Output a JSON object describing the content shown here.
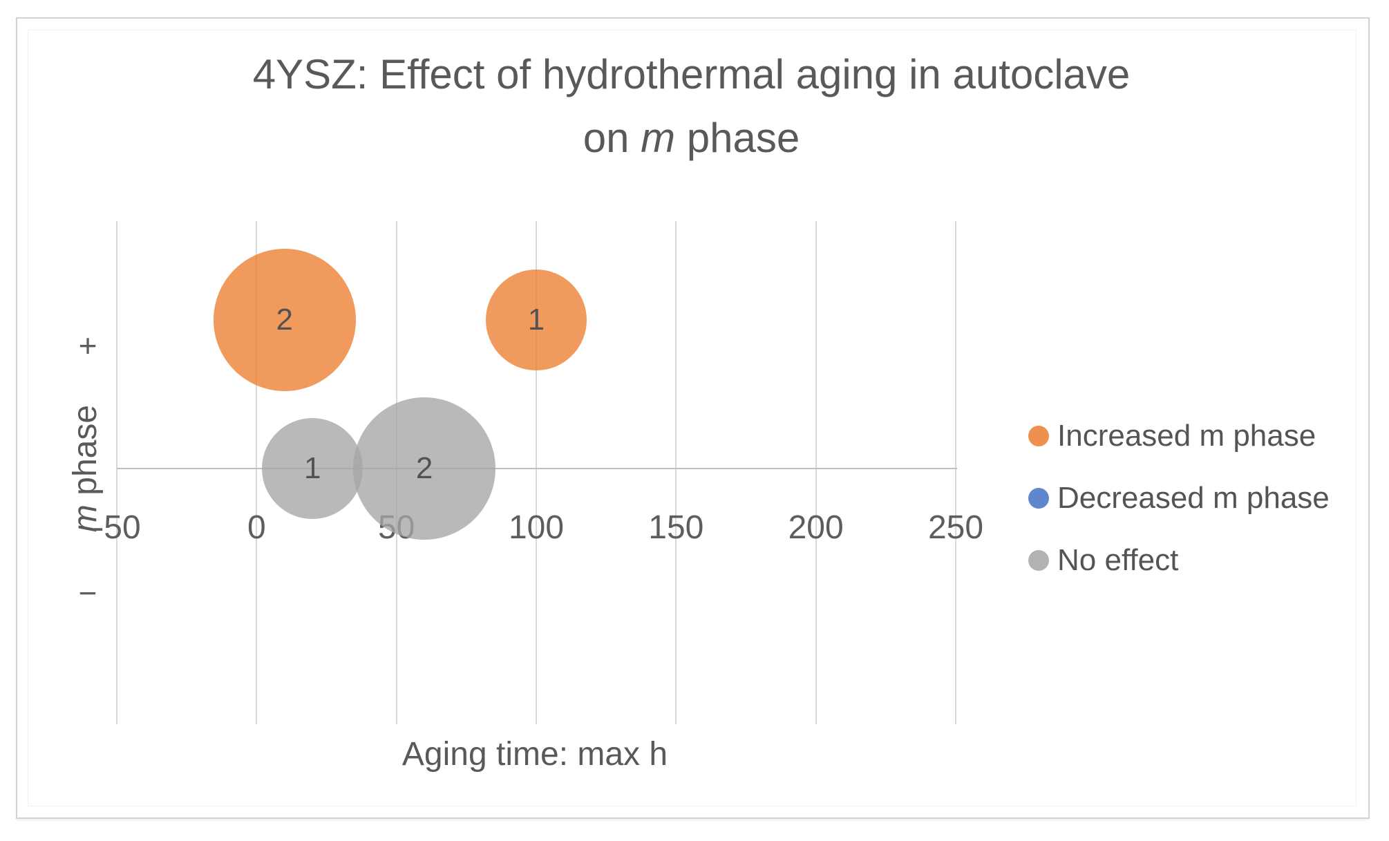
{
  "title": {
    "line1": "4YSZ: Effect of hydrothermal aging in autoclave",
    "line2_prefix": "on ",
    "line2_m": "m",
    "line2_suffix": " phase"
  },
  "chart_data": {
    "type": "scatter",
    "subtype": "bubble",
    "title": "4YSZ: Effect of hydrothermal aging in autoclave on m phase",
    "grid": true,
    "legend_position": "right",
    "x_axis": {
      "title": "Aging time: max h",
      "min": -50,
      "max": 250,
      "ticks": [
        -50,
        0,
        50,
        100,
        150,
        200,
        250
      ]
    },
    "y_axis": {
      "title_m": "m",
      "title_rest": " phase",
      "plus": "+",
      "minus": "−"
    },
    "series": [
      {
        "name": "Increased m phase",
        "color": "#ED7D31",
        "points": [
          {
            "x": 10,
            "y": 1,
            "count": 2
          },
          {
            "x": 100,
            "y": 1,
            "count": 1
          }
        ]
      },
      {
        "name": "Decreased m phase",
        "color": "#4472C4",
        "points": []
      },
      {
        "name": "No effect",
        "color": "#A5A5A5",
        "points": [
          {
            "x": 20,
            "y": 0,
            "count": 1
          },
          {
            "x": 60,
            "y": 0,
            "count": 2
          }
        ]
      }
    ]
  }
}
